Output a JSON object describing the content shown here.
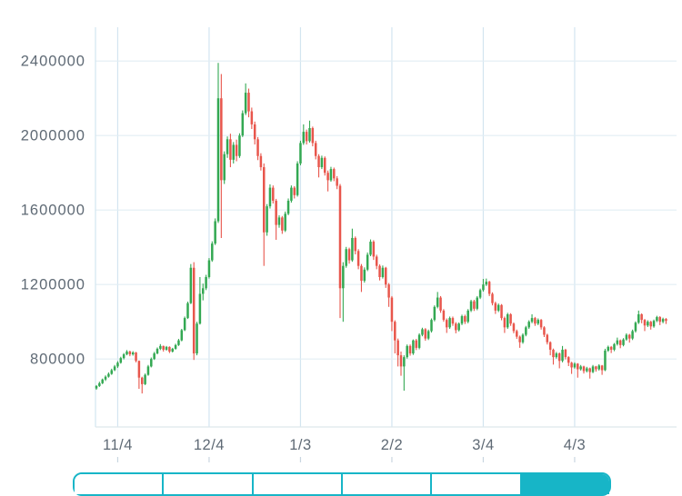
{
  "page": {
    "background": "#ffffff",
    "description_visible_text_only": true
  },
  "chart_data": {
    "type": "candlestick",
    "title": "",
    "xlabel": "",
    "ylabel": "",
    "grid": true,
    "legend": "none",
    "y_axis": {
      "tick_values": [
        2400000,
        2000000,
        1600000,
        1200000,
        800000
      ],
      "tick_labels": [
        "2400000",
        "2000000",
        "1600000",
        "1200000",
        "800000"
      ],
      "approx_visible_range": [
        435000,
        2580000
      ]
    },
    "x_axis": {
      "tick_labels": [
        "11/4",
        "12/4",
        "1/3",
        "2/2",
        "3/4",
        "4/3"
      ],
      "ticks": [
        {
          "label": "11/4",
          "candle_index": 7
        },
        {
          "label": "12/4",
          "candle_index": 37
        },
        {
          "label": "1/3",
          "candle_index": 67
        },
        {
          "label": "2/2",
          "candle_index": 97
        },
        {
          "label": "3/4",
          "candle_index": 127
        },
        {
          "label": "4/3",
          "candle_index": 157
        }
      ]
    },
    "colors": {
      "up": "#33a852",
      "down": "#e8564c",
      "grid_vertical": "#d3e5f0",
      "grid_horizontal": "#e2edf4",
      "axis_line": "#dde6ec",
      "axis_text": "#5f6a75",
      "minor_tick": "#c9d6e0"
    },
    "price_unit_multiplier": 1000,
    "candles_ohlc_note": "Daily candles, values are open/high/low/close in units of 1000 (multiply by price_unit_multiplier to match y-axis labels). open of each candle equals prior close.",
    "candles_ohlc": [
      [
        642,
        660,
        635,
        655
      ],
      [
        655,
        678,
        650,
        670
      ],
      [
        670,
        695,
        665,
        690
      ],
      [
        690,
        712,
        682,
        705
      ],
      [
        705,
        728,
        700,
        720
      ],
      [
        720,
        748,
        715,
        740
      ],
      [
        740,
        768,
        735,
        760
      ],
      [
        760,
        788,
        752,
        780
      ],
      [
        780,
        812,
        775,
        805
      ],
      [
        805,
        832,
        798,
        825
      ],
      [
        825,
        848,
        820,
        840
      ],
      [
        840,
        845,
        815,
        825
      ],
      [
        825,
        842,
        818,
        835
      ],
      [
        835,
        838,
        782,
        790
      ],
      [
        790,
        792,
        640,
        700
      ],
      [
        700,
        705,
        615,
        665
      ],
      [
        665,
        722,
        660,
        715
      ],
      [
        715,
        768,
        710,
        760
      ],
      [
        760,
        808,
        755,
        800
      ],
      [
        800,
        838,
        795,
        830
      ],
      [
        830,
        862,
        825,
        855
      ],
      [
        855,
        880,
        848,
        870
      ],
      [
        870,
        872,
        840,
        850
      ],
      [
        850,
        870,
        845,
        865
      ],
      [
        865,
        868,
        832,
        840
      ],
      [
        840,
        860,
        835,
        855
      ],
      [
        855,
        882,
        850,
        875
      ],
      [
        875,
        908,
        870,
        900
      ],
      [
        900,
        962,
        895,
        955
      ],
      [
        955,
        1028,
        950,
        1020
      ],
      [
        1020,
        1108,
        1015,
        1100
      ],
      [
        1100,
        1310,
        1095,
        1290
      ],
      [
        1290,
        1320,
        795,
        830
      ],
      [
        830,
        1000,
        820,
        990
      ],
      [
        990,
        1240,
        985,
        1150
      ],
      [
        1150,
        1205,
        1115,
        1180
      ],
      [
        1180,
        1252,
        1170,
        1240
      ],
      [
        1240,
        1342,
        1232,
        1330
      ],
      [
        1330,
        1432,
        1322,
        1420
      ],
      [
        1420,
        1555,
        1412,
        1540
      ],
      [
        1540,
        2390,
        1530,
        2200
      ],
      [
        2200,
        2330,
        1450,
        1760
      ],
      [
        1760,
        1915,
        1740,
        1900
      ],
      [
        1900,
        1995,
        1880,
        1980
      ],
      [
        1980,
        2010,
        1830,
        1870
      ],
      [
        1870,
        1965,
        1850,
        1950
      ],
      [
        1950,
        1978,
        1862,
        1890
      ],
      [
        1890,
        2012,
        1880,
        2000
      ],
      [
        2000,
        2135,
        1992,
        2120
      ],
      [
        2120,
        2280,
        2110,
        2230
      ],
      [
        2230,
        2252,
        2098,
        2130
      ],
      [
        2130,
        2150,
        2035,
        2060
      ],
      [
        2060,
        2075,
        1952,
        1980
      ],
      [
        1980,
        1992,
        1868,
        1890
      ],
      [
        1890,
        1905,
        1812,
        1830
      ],
      [
        1830,
        1850,
        1300,
        1480
      ],
      [
        1480,
        1632,
        1462,
        1620
      ],
      [
        1620,
        1738,
        1608,
        1720
      ],
      [
        1720,
        1732,
        1635,
        1650
      ],
      [
        1650,
        1660,
        1440,
        1520
      ],
      [
        1520,
        1572,
        1505,
        1560
      ],
      [
        1560,
        1568,
        1472,
        1490
      ],
      [
        1490,
        1592,
        1482,
        1580
      ],
      [
        1580,
        1662,
        1572,
        1650
      ],
      [
        1650,
        1732,
        1640,
        1720
      ],
      [
        1720,
        1728,
        1662,
        1680
      ],
      [
        1680,
        1862,
        1672,
        1850
      ],
      [
        1850,
        1972,
        1840,
        1960
      ],
      [
        1960,
        2060,
        1950,
        2020
      ],
      [
        2020,
        2032,
        1952,
        1970
      ],
      [
        1970,
        2080,
        1962,
        2040
      ],
      [
        2040,
        2048,
        1942,
        1960
      ],
      [
        1960,
        1972,
        1872,
        1890
      ],
      [
        1890,
        1900,
        1775,
        1830
      ],
      [
        1830,
        1892,
        1820,
        1880
      ],
      [
        1880,
        1888,
        1785,
        1800
      ],
      [
        1800,
        1812,
        1700,
        1760
      ],
      [
        1760,
        1832,
        1752,
        1820
      ],
      [
        1820,
        1828,
        1755,
        1770
      ],
      [
        1770,
        1782,
        1712,
        1730
      ],
      [
        1730,
        1740,
        1020,
        1180
      ],
      [
        1180,
        1320,
        1000,
        1300
      ],
      [
        1300,
        1402,
        1290,
        1390
      ],
      [
        1390,
        1398,
        1312,
        1330
      ],
      [
        1330,
        1500,
        1322,
        1450
      ],
      [
        1450,
        1458,
        1362,
        1380
      ],
      [
        1380,
        1390,
        1282,
        1300
      ],
      [
        1300,
        1310,
        1160,
        1220
      ],
      [
        1220,
        1292,
        1210,
        1280
      ],
      [
        1280,
        1372,
        1272,
        1360
      ],
      [
        1360,
        1442,
        1352,
        1430
      ],
      [
        1430,
        1438,
        1332,
        1350
      ],
      [
        1350,
        1360,
        1282,
        1300
      ],
      [
        1300,
        1308,
        1222,
        1240
      ],
      [
        1240,
        1302,
        1232,
        1290
      ],
      [
        1290,
        1295,
        1182,
        1200
      ],
      [
        1200,
        1208,
        1080,
        1130
      ],
      [
        1130,
        1138,
        950,
        1000
      ],
      [
        1000,
        1008,
        830,
        900
      ],
      [
        900,
        910,
        760,
        820
      ],
      [
        820,
        840,
        710,
        760
      ],
      [
        760,
        820,
        630,
        810
      ],
      [
        810,
        878,
        802,
        870
      ],
      [
        870,
        878,
        818,
        830
      ],
      [
        830,
        905,
        822,
        900
      ],
      [
        900,
        908,
        848,
        860
      ],
      [
        860,
        938,
        852,
        930
      ],
      [
        930,
        968,
        922,
        960
      ],
      [
        960,
        966,
        898,
        910
      ],
      [
        910,
        958,
        902,
        950
      ],
      [
        950,
        1018,
        942,
        1010
      ],
      [
        1010,
        1088,
        1002,
        1080
      ],
      [
        1080,
        1160,
        1072,
        1130
      ],
      [
        1130,
        1138,
        1048,
        1060
      ],
      [
        1060,
        1068,
        1000,
        1010
      ],
      [
        1010,
        1018,
        940,
        970
      ],
      [
        970,
        1028,
        962,
        1020
      ],
      [
        1020,
        1028,
        978,
        990
      ],
      [
        990,
        998,
        938,
        955
      ],
      [
        955,
        996,
        948,
        990
      ],
      [
        990,
        1038,
        982,
        1030
      ],
      [
        1030,
        1038,
        988,
        1000
      ],
      [
        1000,
        1068,
        992,
        1060
      ],
      [
        1060,
        1118,
        1052,
        1110
      ],
      [
        1110,
        1118,
        1058,
        1070
      ],
      [
        1070,
        1138,
        1062,
        1130
      ],
      [
        1130,
        1178,
        1122,
        1170
      ],
      [
        1170,
        1230,
        1162,
        1200
      ],
      [
        1200,
        1232,
        1192,
        1215
      ],
      [
        1215,
        1220,
        1138,
        1150
      ],
      [
        1150,
        1158,
        1088,
        1100
      ],
      [
        1100,
        1108,
        1042,
        1060
      ],
      [
        1060,
        1098,
        1052,
        1090
      ],
      [
        1090,
        1095,
        1008,
        1020
      ],
      [
        1020,
        1028,
        940,
        970
      ],
      [
        970,
        1048,
        962,
        1040
      ],
      [
        1040,
        1046,
        978,
        990
      ],
      [
        990,
        996,
        938,
        950
      ],
      [
        950,
        958,
        908,
        920
      ],
      [
        920,
        926,
        860,
        890
      ],
      [
        890,
        938,
        882,
        930
      ],
      [
        930,
        978,
        922,
        970
      ],
      [
        970,
        1008,
        962,
        1000
      ],
      [
        1000,
        1040,
        992,
        1020
      ],
      [
        1020,
        1026,
        978,
        990
      ],
      [
        990,
        1018,
        982,
        1010
      ],
      [
        1010,
        1015,
        958,
        970
      ],
      [
        970,
        976,
        918,
        930
      ],
      [
        930,
        936,
        878,
        890
      ],
      [
        890,
        895,
        820,
        850
      ],
      [
        850,
        856,
        770,
        810
      ],
      [
        810,
        838,
        802,
        830
      ],
      [
        830,
        835,
        750,
        790
      ],
      [
        790,
        870,
        782,
        850
      ],
      [
        850,
        855,
        798,
        810
      ],
      [
        810,
        815,
        762,
        780
      ],
      [
        780,
        785,
        720,
        755
      ],
      [
        755,
        782,
        748,
        775
      ],
      [
        775,
        778,
        700,
        745
      ],
      [
        745,
        768,
        738,
        760
      ],
      [
        760,
        764,
        722,
        735
      ],
      [
        735,
        758,
        728,
        750
      ],
      [
        750,
        754,
        695,
        730
      ],
      [
        730,
        768,
        724,
        760
      ],
      [
        760,
        763,
        732,
        745
      ],
      [
        745,
        772,
        738,
        765
      ],
      [
        765,
        768,
        715,
        740
      ],
      [
        740,
        855,
        735,
        845
      ],
      [
        845,
        872,
        838,
        865
      ],
      [
        865,
        870,
        832,
        850
      ],
      [
        850,
        886,
        842,
        880
      ],
      [
        880,
        915,
        872,
        900
      ],
      [
        900,
        905,
        858,
        875
      ],
      [
        875,
        912,
        868,
        905
      ],
      [
        905,
        938,
        898,
        930
      ],
      [
        930,
        935,
        888,
        910
      ],
      [
        910,
        958,
        902,
        950
      ],
      [
        950,
        1002,
        942,
        995
      ],
      [
        995,
        1060,
        988,
        1040
      ],
      [
        1040,
        1045,
        992,
        1010
      ],
      [
        1010,
        1015,
        950,
        980
      ],
      [
        980,
        1008,
        972,
        1000
      ],
      [
        1000,
        1005,
        958,
        975
      ],
      [
        975,
        1012,
        968,
        1005
      ],
      [
        1005,
        1032,
        998,
        1025
      ],
      [
        1025,
        1030,
        982,
        1000
      ],
      [
        1000,
        1022,
        992,
        1015
      ],
      [
        1015,
        1020,
        988,
        1005
      ]
    ]
  },
  "range_selector": {
    "segment_count": 6,
    "active_segment_index": 5,
    "accent_color": "#17b5c7",
    "inactive_fill": "#ffffff"
  }
}
